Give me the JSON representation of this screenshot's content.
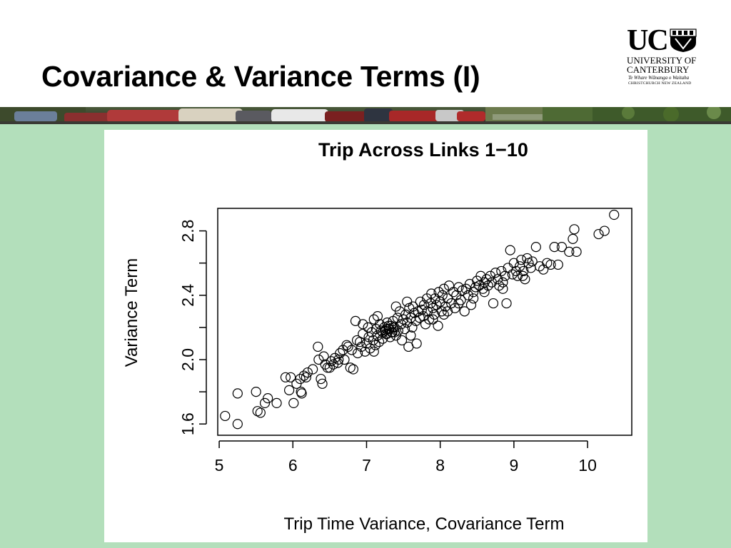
{
  "slide": {
    "title": "Covariance & Variance Terms (I)"
  },
  "logo": {
    "mark": "UC",
    "line1": "UNIVERSITY OF",
    "line2": "CANTERBURY",
    "line3": "Te Whare Wānanga o Waitaha",
    "line4": "CHRISTCHURCH NEW ZEALAND",
    "crest_icon": "shield-crest-icon"
  },
  "banner": {
    "description_icon": "traffic-photo-strip"
  },
  "colors": {
    "background_green": "#b3dfbb",
    "marker": "#000000"
  },
  "chart_data": {
    "type": "scatter",
    "title": "Trip Across Links 1−10",
    "xlabel": "Trip Time Variance, Covariance Term",
    "ylabel": "Variance Term",
    "xlim": [
      4.98,
      10.6
    ],
    "ylim": [
      1.53,
      2.94
    ],
    "xticks": [
      5,
      6,
      7,
      8,
      9,
      10
    ],
    "xticklabels": [
      "5",
      "6",
      "7",
      "8",
      "9",
      "10"
    ],
    "yticks": [
      1.6,
      1.8,
      2.0,
      2.2,
      2.4,
      2.6,
      2.8
    ],
    "yticklabels": [
      "1.6",
      "",
      "2.0",
      "",
      "2.4",
      "",
      "2.8"
    ],
    "grid": false,
    "marker": "open-circle",
    "points": [
      [
        5.08,
        1.65
      ],
      [
        5.25,
        1.6
      ],
      [
        5.25,
        1.79
      ],
      [
        5.5,
        1.8
      ],
      [
        5.52,
        1.68
      ],
      [
        5.56,
        1.67
      ],
      [
        5.62,
        1.73
      ],
      [
        5.66,
        1.76
      ],
      [
        5.78,
        1.73
      ],
      [
        5.9,
        1.89
      ],
      [
        5.95,
        1.81
      ],
      [
        5.97,
        1.89
      ],
      [
        6.01,
        1.73
      ],
      [
        6.05,
        1.85
      ],
      [
        6.1,
        1.88
      ],
      [
        6.11,
        1.8
      ],
      [
        6.12,
        1.79
      ],
      [
        6.15,
        1.9
      ],
      [
        6.2,
        1.92
      ],
      [
        6.18,
        1.89
      ],
      [
        6.27,
        1.94
      ],
      [
        6.34,
        2.08
      ],
      [
        6.38,
        1.88
      ],
      [
        6.4,
        1.85
      ],
      [
        6.42,
        2.02
      ],
      [
        6.44,
        1.97
      ],
      [
        6.47,
        1.95
      ],
      [
        6.52,
        1.99
      ],
      [
        6.55,
        1.97
      ],
      [
        6.57,
        2.01
      ],
      [
        6.61,
        1.98
      ],
      [
        6.64,
        2.04
      ],
      [
        6.68,
        2.06
      ],
      [
        6.7,
        2.0
      ],
      [
        6.73,
        2.09
      ],
      [
        6.78,
        1.95
      ],
      [
        6.8,
        2.06
      ],
      [
        6.82,
        1.94
      ],
      [
        6.85,
        2.24
      ],
      [
        6.87,
        2.12
      ],
      [
        6.88,
        2.04
      ],
      [
        6.91,
        2.11
      ],
      [
        6.93,
        2.08
      ],
      [
        6.95,
        2.16
      ],
      [
        6.98,
        2.05
      ],
      [
        7.0,
        2.1
      ],
      [
        7.02,
        2.2
      ],
      [
        7.03,
        2.14
      ],
      [
        7.05,
        2.07
      ],
      [
        7.07,
        2.17
      ],
      [
        7.09,
        2.12
      ],
      [
        7.1,
        2.25
      ],
      [
        7.12,
        2.09
      ],
      [
        7.13,
        2.19
      ],
      [
        7.15,
        2.15
      ],
      [
        7.17,
        2.11
      ],
      [
        7.18,
        2.22
      ],
      [
        7.2,
        2.18
      ],
      [
        7.22,
        2.13
      ],
      [
        7.24,
        2.2
      ],
      [
        7.26,
        2.16
      ],
      [
        7.28,
        2.23
      ],
      [
        7.3,
        2.19
      ],
      [
        7.32,
        2.14
      ],
      [
        7.33,
        2.21
      ],
      [
        7.35,
        2.17
      ],
      [
        7.36,
        2.24
      ],
      [
        7.38,
        2.2
      ],
      [
        7.4,
        2.15
      ],
      [
        7.42,
        2.26
      ],
      [
        7.43,
        2.18
      ],
      [
        7.45,
        2.3
      ],
      [
        7.47,
        2.22
      ],
      [
        7.48,
        2.12
      ],
      [
        7.5,
        2.25
      ],
      [
        7.52,
        2.19
      ],
      [
        7.53,
        2.28
      ],
      [
        7.55,
        2.23
      ],
      [
        7.57,
        2.08
      ],
      [
        7.58,
        2.32
      ],
      [
        7.6,
        2.26
      ],
      [
        7.62,
        2.2
      ],
      [
        7.63,
        2.33
      ],
      [
        7.65,
        2.29
      ],
      [
        7.67,
        2.24
      ],
      [
        7.68,
        2.1
      ],
      [
        7.7,
        2.3
      ],
      [
        7.72,
        2.26
      ],
      [
        7.73,
        2.36
      ],
      [
        7.75,
        2.31
      ],
      [
        7.77,
        2.27
      ],
      [
        7.78,
        2.34
      ],
      [
        7.8,
        2.22
      ],
      [
        7.82,
        2.38
      ],
      [
        7.83,
        2.3
      ],
      [
        7.85,
        2.25
      ],
      [
        7.87,
        2.35
      ],
      [
        7.88,
        2.41
      ],
      [
        7.9,
        2.32
      ],
      [
        7.92,
        2.28
      ],
      [
        7.93,
        2.38
      ],
      [
        7.95,
        2.34
      ],
      [
        7.97,
        2.21
      ],
      [
        7.98,
        2.42
      ],
      [
        8.0,
        2.36
      ],
      [
        8.02,
        2.3
      ],
      [
        8.03,
        2.4
      ],
      [
        8.05,
        2.44
      ],
      [
        8.07,
        2.33
      ],
      [
        8.1,
        2.38
      ],
      [
        8.12,
        2.46
      ],
      [
        8.15,
        2.35
      ],
      [
        8.18,
        2.42
      ],
      [
        8.2,
        2.32
      ],
      [
        8.22,
        2.4
      ],
      [
        8.25,
        2.45
      ],
      [
        8.28,
        2.37
      ],
      [
        8.3,
        2.43
      ],
      [
        8.33,
        2.3
      ],
      [
        8.35,
        2.44
      ],
      [
        8.38,
        2.4
      ],
      [
        8.4,
        2.47
      ],
      [
        8.42,
        2.34
      ],
      [
        8.45,
        2.42
      ],
      [
        8.48,
        2.45
      ],
      [
        8.5,
        2.49
      ],
      [
        8.53,
        2.46
      ],
      [
        8.55,
        2.52
      ],
      [
        8.58,
        2.44
      ],
      [
        8.6,
        2.48
      ],
      [
        8.63,
        2.5
      ],
      [
        8.65,
        2.46
      ],
      [
        8.68,
        2.52
      ],
      [
        8.7,
        2.48
      ],
      [
        8.72,
        2.35
      ],
      [
        8.75,
        2.54
      ],
      [
        8.78,
        2.5
      ],
      [
        8.8,
        2.46
      ],
      [
        8.83,
        2.55
      ],
      [
        8.85,
        2.44
      ],
      [
        8.88,
        2.52
      ],
      [
        8.9,
        2.35
      ],
      [
        8.92,
        2.57
      ],
      [
        8.95,
        2.68
      ],
      [
        8.98,
        2.53
      ],
      [
        9.0,
        2.6
      ],
      [
        9.03,
        2.55
      ],
      [
        9.05,
        2.52
      ],
      [
        9.08,
        2.58
      ],
      [
        9.1,
        2.62
      ],
      [
        9.13,
        2.55
      ],
      [
        9.15,
        2.5
      ],
      [
        9.18,
        2.63
      ],
      [
        9.2,
        2.6
      ],
      [
        9.23,
        2.57
      ],
      [
        9.25,
        2.61
      ],
      [
        9.3,
        2.7
      ],
      [
        9.35,
        2.58
      ],
      [
        9.4,
        2.56
      ],
      [
        9.45,
        2.6
      ],
      [
        9.5,
        2.59
      ],
      [
        9.55,
        2.7
      ],
      [
        9.6,
        2.59
      ],
      [
        9.65,
        2.7
      ],
      [
        9.75,
        2.67
      ],
      [
        9.8,
        2.75
      ],
      [
        9.82,
        2.81
      ],
      [
        9.85,
        2.67
      ],
      [
        10.15,
        2.78
      ],
      [
        10.23,
        2.8
      ],
      [
        10.36,
        2.9
      ],
      [
        7.25,
        2.18
      ],
      [
        7.28,
        2.16
      ],
      [
        7.31,
        2.19
      ],
      [
        7.34,
        2.17
      ],
      [
        7.36,
        2.2
      ],
      [
        7.3,
        2.21
      ],
      [
        7.27,
        2.19
      ],
      [
        7.38,
        2.17
      ],
      [
        7.22,
        2.17
      ],
      [
        6.35,
        2.0
      ],
      [
        6.5,
        1.95
      ],
      [
        6.62,
        2.0
      ],
      [
        6.75,
        2.08
      ],
      [
        7.1,
        2.05
      ],
      [
        7.6,
        2.15
      ],
      [
        7.9,
        2.25
      ],
      [
        8.05,
        2.28
      ],
      [
        8.45,
        2.38
      ],
      [
        8.6,
        2.42
      ],
      [
        8.85,
        2.48
      ],
      [
        9.12,
        2.52
      ],
      [
        7.4,
        2.33
      ],
      [
        7.55,
        2.36
      ],
      [
        7.15,
        2.27
      ],
      [
        6.95,
        2.22
      ],
      [
        8.25,
        2.35
      ],
      [
        8.1,
        2.3
      ]
    ]
  }
}
